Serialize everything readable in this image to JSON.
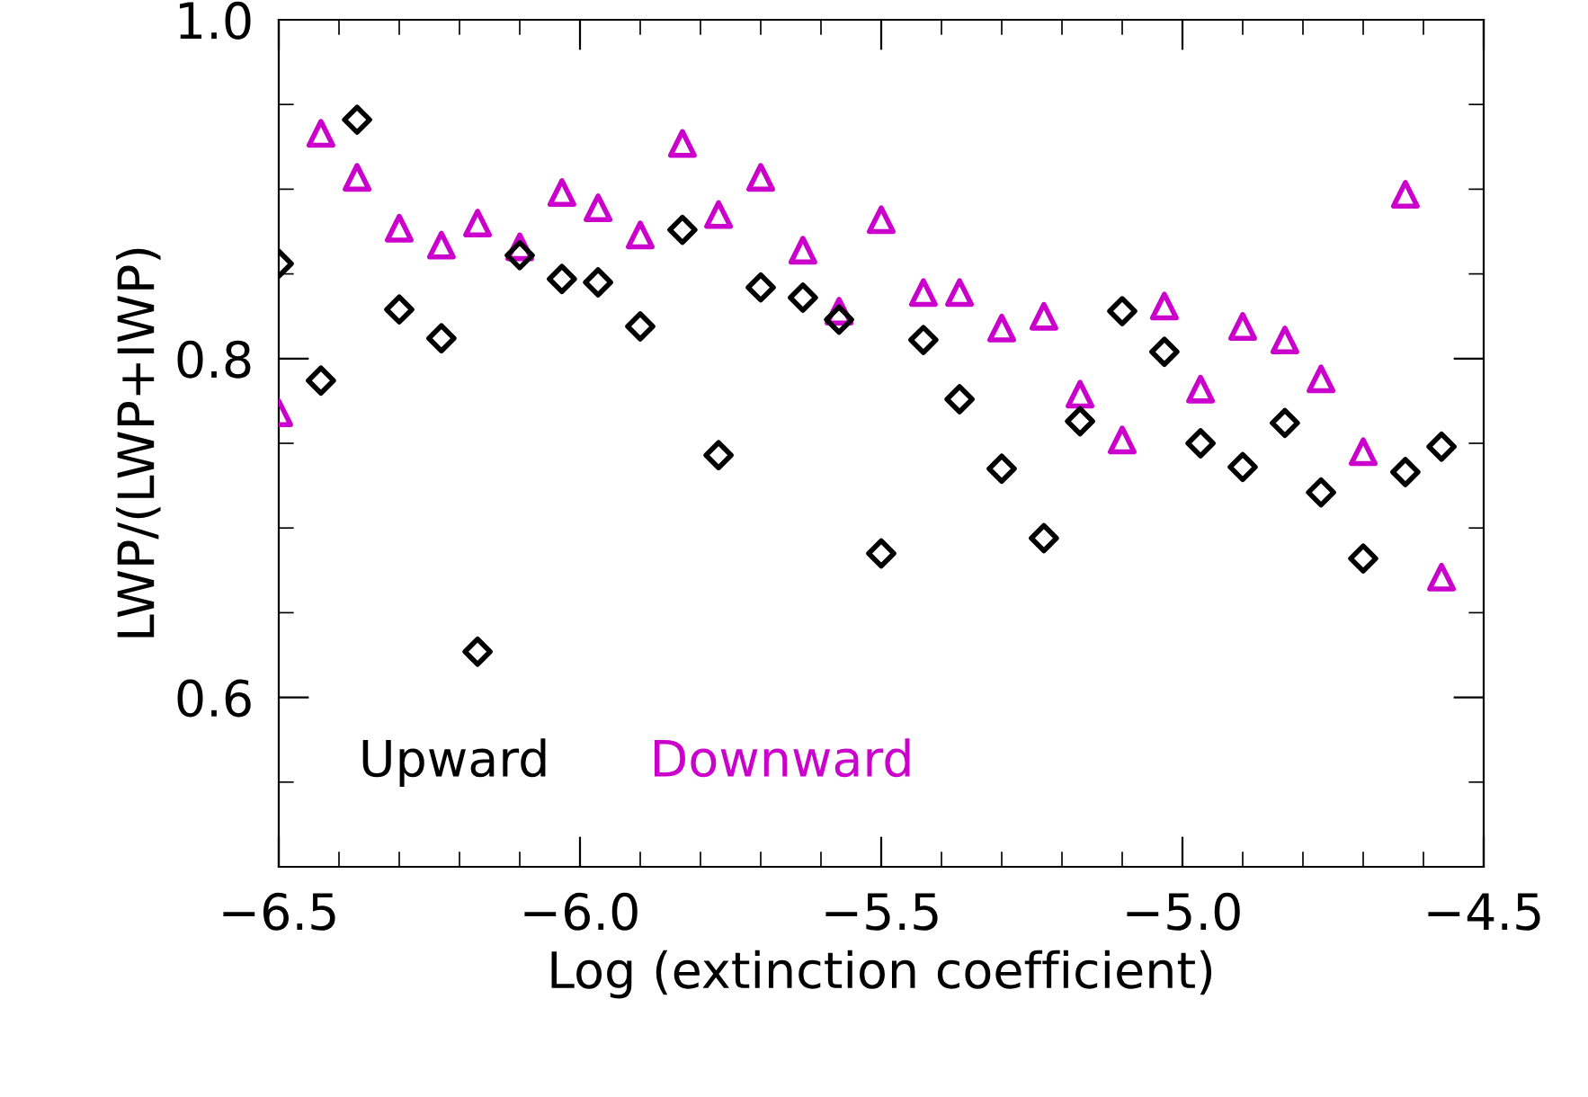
{
  "chart_data": {
    "type": "scatter",
    "xlabel": "Log (extinction coefficient)",
    "ylabel": "LWP/(LWP+IWP)",
    "xlim": [
      -6.5,
      -4.5
    ],
    "xticks": [
      {
        "value": -6.5,
        "label": "−6.5"
      },
      {
        "value": -6.0,
        "label": "−6.0"
      },
      {
        "value": -5.5,
        "label": "−5.5"
      },
      {
        "value": -5.0,
        "label": "−5.0"
      },
      {
        "value": -4.5,
        "label": "−4.5"
      }
    ],
    "ylim": [
      0.5,
      1.0
    ],
    "yticks": [
      {
        "value": 0.5,
        "label": null
      },
      {
        "value": 0.6,
        "label": "0.6"
      },
      {
        "value": 0.8,
        "label": "0.8"
      },
      {
        "value": 1.0,
        "label": "1.0"
      }
    ],
    "grid": false,
    "legend": "bottom left",
    "series": [
      {
        "name": "Upward",
        "color": "#000000",
        "marker": "diamond",
        "x": [
          -6.5,
          -6.43,
          -6.37,
          -6.3,
          -6.23,
          -6.17,
          -6.1,
          -6.03,
          -5.97,
          -5.9,
          -5.83,
          -5.77,
          -5.7,
          -5.63,
          -5.57,
          -5.5,
          -5.43,
          -5.37,
          -5.3,
          -5.23,
          -5.17,
          -5.1,
          -5.03,
          -4.97,
          -4.9,
          -4.83,
          -4.77,
          -4.7,
          -4.63,
          -4.57
        ],
        "values": [
          0.856,
          0.787,
          0.941,
          0.829,
          0.812,
          0.627,
          0.861,
          0.847,
          0.845,
          0.819,
          0.876,
          0.743,
          0.842,
          0.836,
          0.823,
          0.685,
          0.811,
          0.776,
          0.735,
          0.694,
          0.763,
          0.828,
          0.804,
          0.75,
          0.736,
          0.762,
          0.721,
          0.682,
          0.733,
          0.748
        ]
      },
      {
        "name": "Downward",
        "color": "#cc00cc",
        "marker": "triangle",
        "x": [
          -6.5,
          -6.43,
          -6.37,
          -6.3,
          -6.23,
          -6.17,
          -6.1,
          -6.03,
          -5.97,
          -5.9,
          -5.83,
          -5.77,
          -5.7,
          -5.63,
          -5.57,
          -5.5,
          -5.43,
          -5.37,
          -5.3,
          -5.23,
          -5.17,
          -5.1,
          -5.03,
          -4.97,
          -4.9,
          -4.83,
          -4.77,
          -4.7,
          -4.63,
          -4.57
        ],
        "values": [
          0.768,
          0.933,
          0.907,
          0.877,
          0.867,
          0.88,
          0.866,
          0.898,
          0.889,
          0.873,
          0.927,
          0.885,
          0.907,
          0.864,
          0.828,
          0.882,
          0.839,
          0.839,
          0.818,
          0.825,
          0.779,
          0.752,
          0.831,
          0.782,
          0.819,
          0.811,
          0.788,
          0.745,
          0.897,
          0.671
        ]
      }
    ]
  }
}
